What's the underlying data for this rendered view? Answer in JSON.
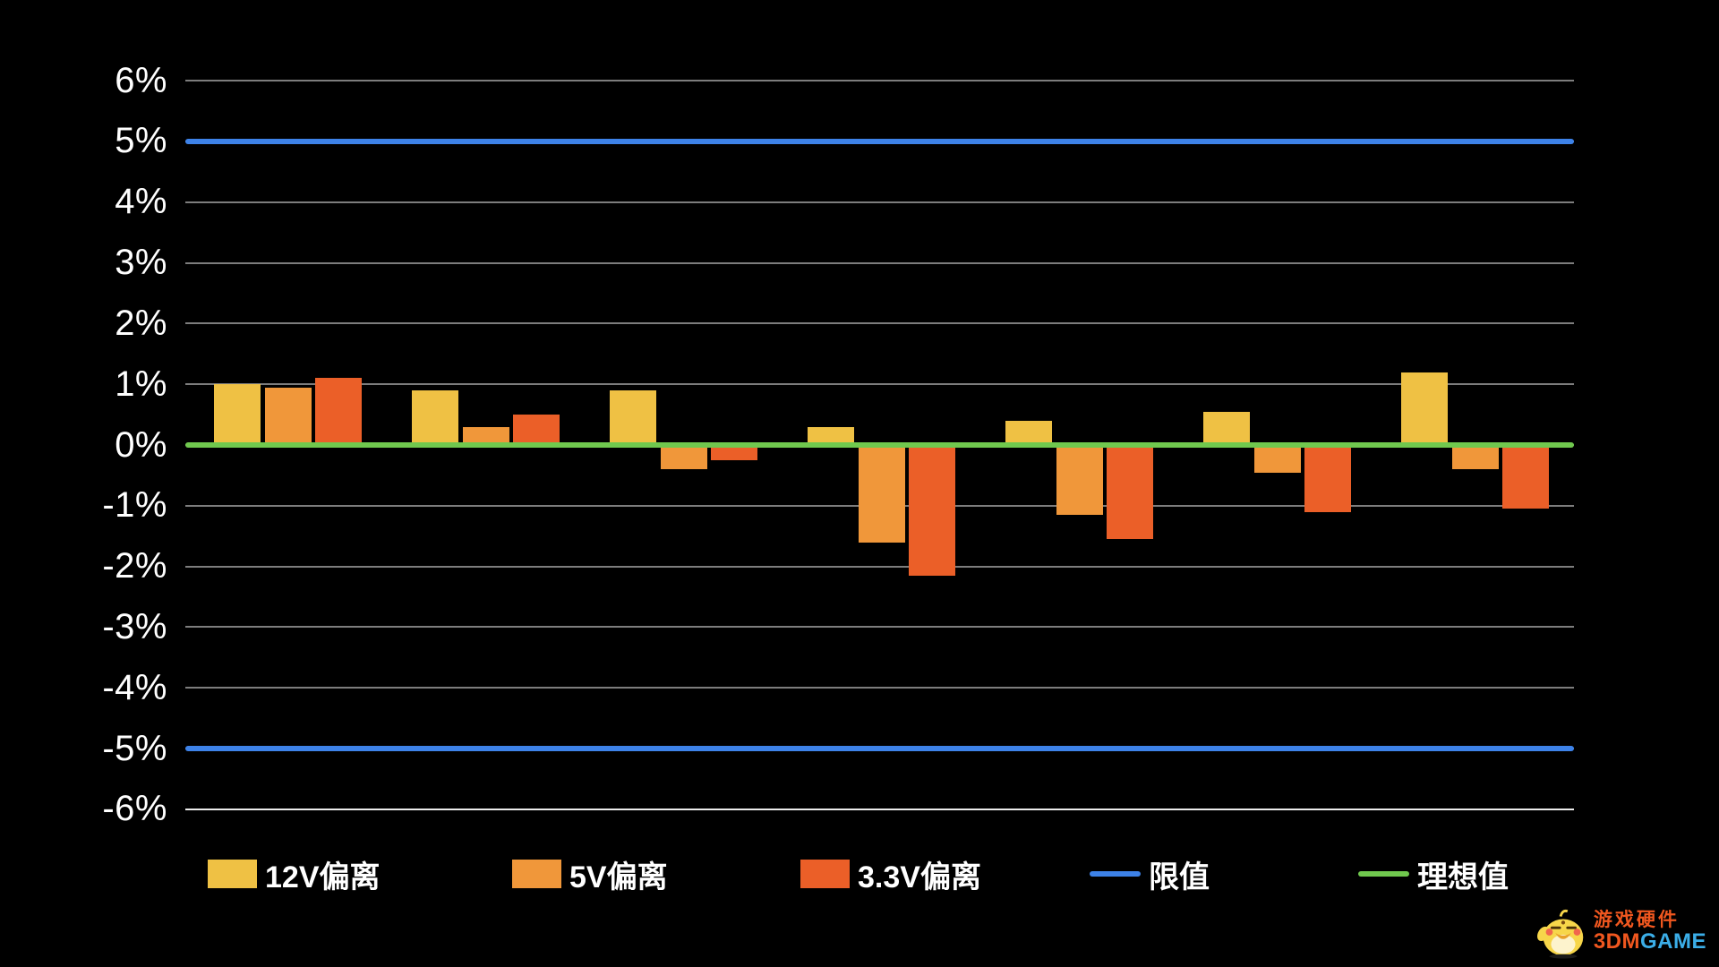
{
  "page": {
    "background": "#000000",
    "text_color": "#ffffff"
  },
  "chart_data": {
    "type": "bar",
    "title": "",
    "num_groups": 7,
    "categories": [
      "",
      "",
      "",
      "",
      "",
      "",
      ""
    ],
    "series": [
      {
        "name": "12V偏离",
        "color": "#efc144",
        "values": [
          1.0,
          0.9,
          0.9,
          0.3,
          0.4,
          0.55,
          1.2
        ]
      },
      {
        "name": "5V偏离",
        "color": "#f0973a",
        "values": [
          0.95,
          0.3,
          -0.4,
          -1.6,
          -1.15,
          -0.45,
          -0.4
        ]
      },
      {
        "name": "3.3V偏离",
        "color": "#eb5f28",
        "values": [
          1.1,
          0.5,
          -0.25,
          -2.15,
          -1.55,
          -1.1,
          -1.05
        ]
      }
    ],
    "reference_lines": [
      {
        "name": "限值",
        "color": "#3d82e8",
        "values": [
          5,
          -5
        ]
      },
      {
        "name": "理想值",
        "color": "#70c84e",
        "values": [
          0
        ]
      }
    ],
    "y_ticks": [
      "6%",
      "5%",
      "4%",
      "3%",
      "2%",
      "1%",
      "0%",
      "-1%",
      "-2%",
      "-3%",
      "-4%",
      "-5%",
      "-6%"
    ],
    "ylabel": "",
    "xlabel": "",
    "ylim": [
      -6,
      6
    ],
    "grid": true,
    "gridline_color": "#7d7d7d",
    "baseline_color": "#ececec",
    "legend_position": "bottom"
  },
  "legend": {
    "items": [
      {
        "label": "12V偏离",
        "swatch": "square",
        "color": "#efc144"
      },
      {
        "label": "5V偏离",
        "swatch": "square",
        "color": "#f0973a"
      },
      {
        "label": "3.3V偏离",
        "swatch": "square",
        "color": "#eb5f28"
      },
      {
        "label": "限值",
        "swatch": "line",
        "color": "#3d82e8"
      },
      {
        "label": "理想值",
        "swatch": "line",
        "color": "#70c84e"
      }
    ]
  },
  "watermark": {
    "line1": "游戏硬件",
    "line2_part1": "3DM",
    "line2_part2": "GAME"
  }
}
